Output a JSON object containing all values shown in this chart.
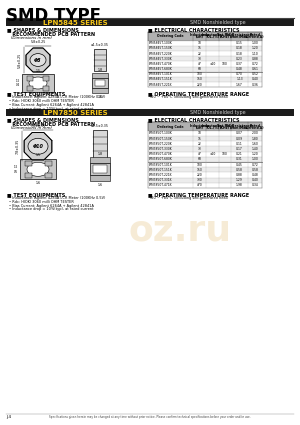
{
  "title": "SMD TYPE",
  "series1_label": "LPN5845 SERIES",
  "series1_type": "SMD Nonshielded type",
  "series2_label": "LPN7850 SERIES",
  "series2_type": "SMD Nonshielded type",
  "shapes_title": "SHAPES & DIMENSIONS\nRECOMMENDED PCB PATTERN",
  "shapes_dim": "(Dimensions in mm)",
  "elec_char": "ELECTRICAL CHARACTERISTICS",
  "table1_headers": [
    "Ordering Code",
    "Inductance\n(uH)",
    "Inductance\nTOL.(%)",
    "Test Freq.\n(KHz)",
    "DC Resistance\n(ohm)Max",
    "Rated\nCurrent(A)"
  ],
  "table1_rows": [
    [
      "LPN5845T-100K",
      "10",
      "",
      "",
      "0.15",
      "1.00"
    ],
    [
      "LPN5845T-150K",
      "15",
      "",
      "",
      "0.18",
      "1.20"
    ],
    [
      "LPN5845T-220K",
      "22",
      "",
      "",
      "0.18",
      "1.10"
    ],
    [
      "LPN5845T-330K",
      "33",
      "",
      "",
      "0.23",
      "0.88"
    ],
    [
      "LPN5845T-470K",
      "47",
      "±10",
      "100",
      "0.37",
      "0.72"
    ],
    [
      "LPN5845T-680K",
      "68",
      "",
      "",
      "0.48",
      "0.61"
    ],
    [
      "LPN5845T-101K",
      "100",
      "",
      "",
      "0.70",
      "0.52"
    ],
    [
      "LPN5845T-151K",
      "150",
      "",
      "",
      "1.13",
      "0.40"
    ],
    [
      "LPN5845T-221K",
      "220",
      "",
      "",
      "1.67",
      "0.36"
    ]
  ],
  "table2_headers": [
    "Ordering Code",
    "Inductance\n(uH)",
    "Inductance\nTOL.(%)",
    "Test Freq.\n(KHz)",
    "DC Resistance\n(ohm)Max",
    "Rated\nCurrent(A)"
  ],
  "table2_rows": [
    [
      "LPN7850T-100K",
      "10",
      "",
      "",
      "0.07",
      "2.00"
    ],
    [
      "LPN7850T-150K",
      "15",
      "",
      "",
      "0.09",
      "1.80"
    ],
    [
      "LPN7850T-220K",
      "22",
      "",
      "",
      "0.11",
      "1.60"
    ],
    [
      "LPN7850T-330K",
      "33",
      "",
      "",
      "0.17",
      "1.40"
    ],
    [
      "LPN7850T-470K",
      "47",
      "±10",
      "100",
      "0.21",
      "1.20"
    ],
    [
      "LPN7850T-680K",
      "68",
      "",
      "",
      "0.31",
      "1.00"
    ],
    [
      "LPN7850T-101K",
      "100",
      "",
      "",
      "0.45",
      "0.72"
    ],
    [
      "LPN7850T-151K",
      "150",
      "",
      "",
      "0.58",
      "0.58"
    ],
    [
      "LPN7850T-221K",
      "220",
      "",
      "",
      "0.88",
      "0.48"
    ],
    [
      "LPN7850T-331K",
      "330",
      "",
      "",
      "1.29",
      "0.40"
    ],
    [
      "LPN7850T-471K",
      "470",
      "",
      "",
      "1.98",
      "0.34"
    ]
  ],
  "test_equip_title": "TEST EQUIPMENTS",
  "test_equip_items": [
    "Inductance: Agilent 4284A LCR Meter (100KHz 0.5V)",
    "Rdc: HIOKI 3060 milli OHM TESTER",
    "Bias Current: Agilent 6264A + Agilent 42841A",
    "Inductance drop = 10%(typ), at rated current"
  ],
  "op_temp_title": "OPERATING TEMPERATURE RANGE",
  "op_temp": "-20 ~ +85°C (including self-generated heat)",
  "footer": "Specifications given herein may be changed at any time without prior notice. Please confirm technical specifications before your order and/or use.",
  "page_num": "J-4",
  "bg_color": "#ffffff",
  "section_bar_bg": "#1c1c1c",
  "section_bar_fg": "#f5c518",
  "table_header_bg": "#b0b0b0",
  "table_row_bg1": "#ffffff",
  "table_row_bg2": "#ececec"
}
